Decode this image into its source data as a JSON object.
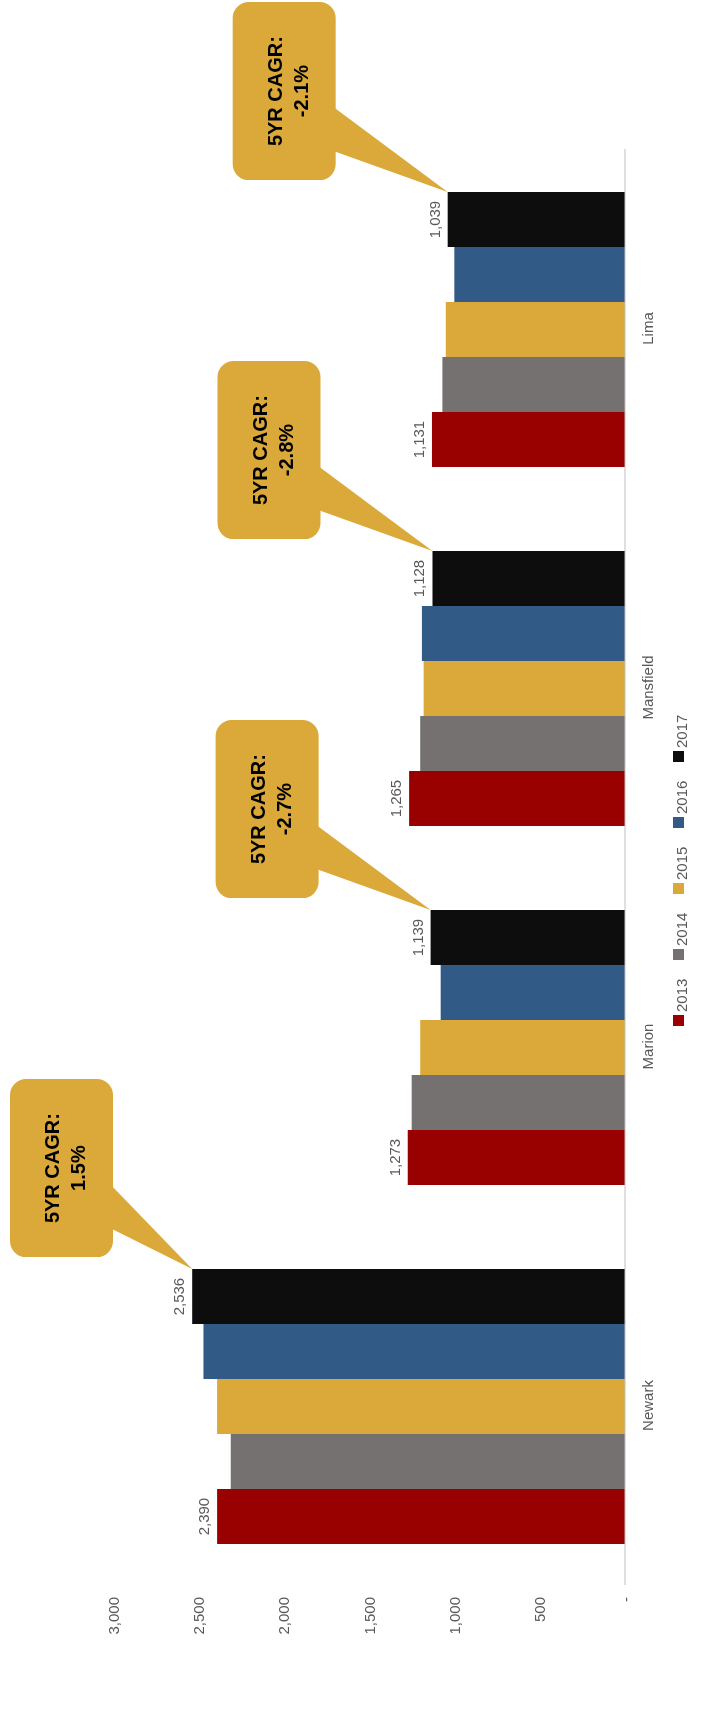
{
  "chart_data": {
    "type": "bar",
    "orientation": "horizontal",
    "categories": [
      "Lima",
      "Mansfield",
      "Marion",
      "Newark"
    ],
    "series": [
      {
        "name": "2013",
        "color": "#990000",
        "values": [
          1131,
          1265,
          1273,
          2390
        ],
        "value_labels": [
          "1,131",
          "1,265",
          "1,273",
          "2,390"
        ]
      },
      {
        "name": "2014",
        "color": "#767171",
        "values": [
          1070,
          1200,
          1250,
          2310
        ]
      },
      {
        "name": "2015",
        "color": "#dba93a",
        "values": [
          1050,
          1180,
          1200,
          2390
        ]
      },
      {
        "name": "2016",
        "color": "#325a87",
        "values": [
          1000,
          1190,
          1080,
          2470
        ]
      },
      {
        "name": "2017",
        "color": "#0d0d0d",
        "values": [
          1039,
          1128,
          1139,
          2536
        ],
        "value_labels": [
          "1,039",
          "1,128",
          "1,139",
          "2,536"
        ]
      }
    ],
    "xlim": [
      3000,
      0
    ],
    "xticks": [
      {
        "value": 0,
        "label": "-"
      },
      500,
      {
        "value": 1000,
        "label": "1,000"
      },
      {
        "value": 1500,
        "label": "1,500"
      },
      {
        "value": 2000,
        "label": "2,000"
      },
      {
        "value": 2500,
        "label": "2,500"
      },
      {
        "value": 3000,
        "label": "3,000"
      }
    ],
    "legend": "right",
    "annotations": [
      "5YR CAGR: 1.5%",
      "5YR CAGR: -2.7%",
      "5YR CAGR: -2.8%",
      "5YR CAGR: -2.1%"
    ]
  }
}
